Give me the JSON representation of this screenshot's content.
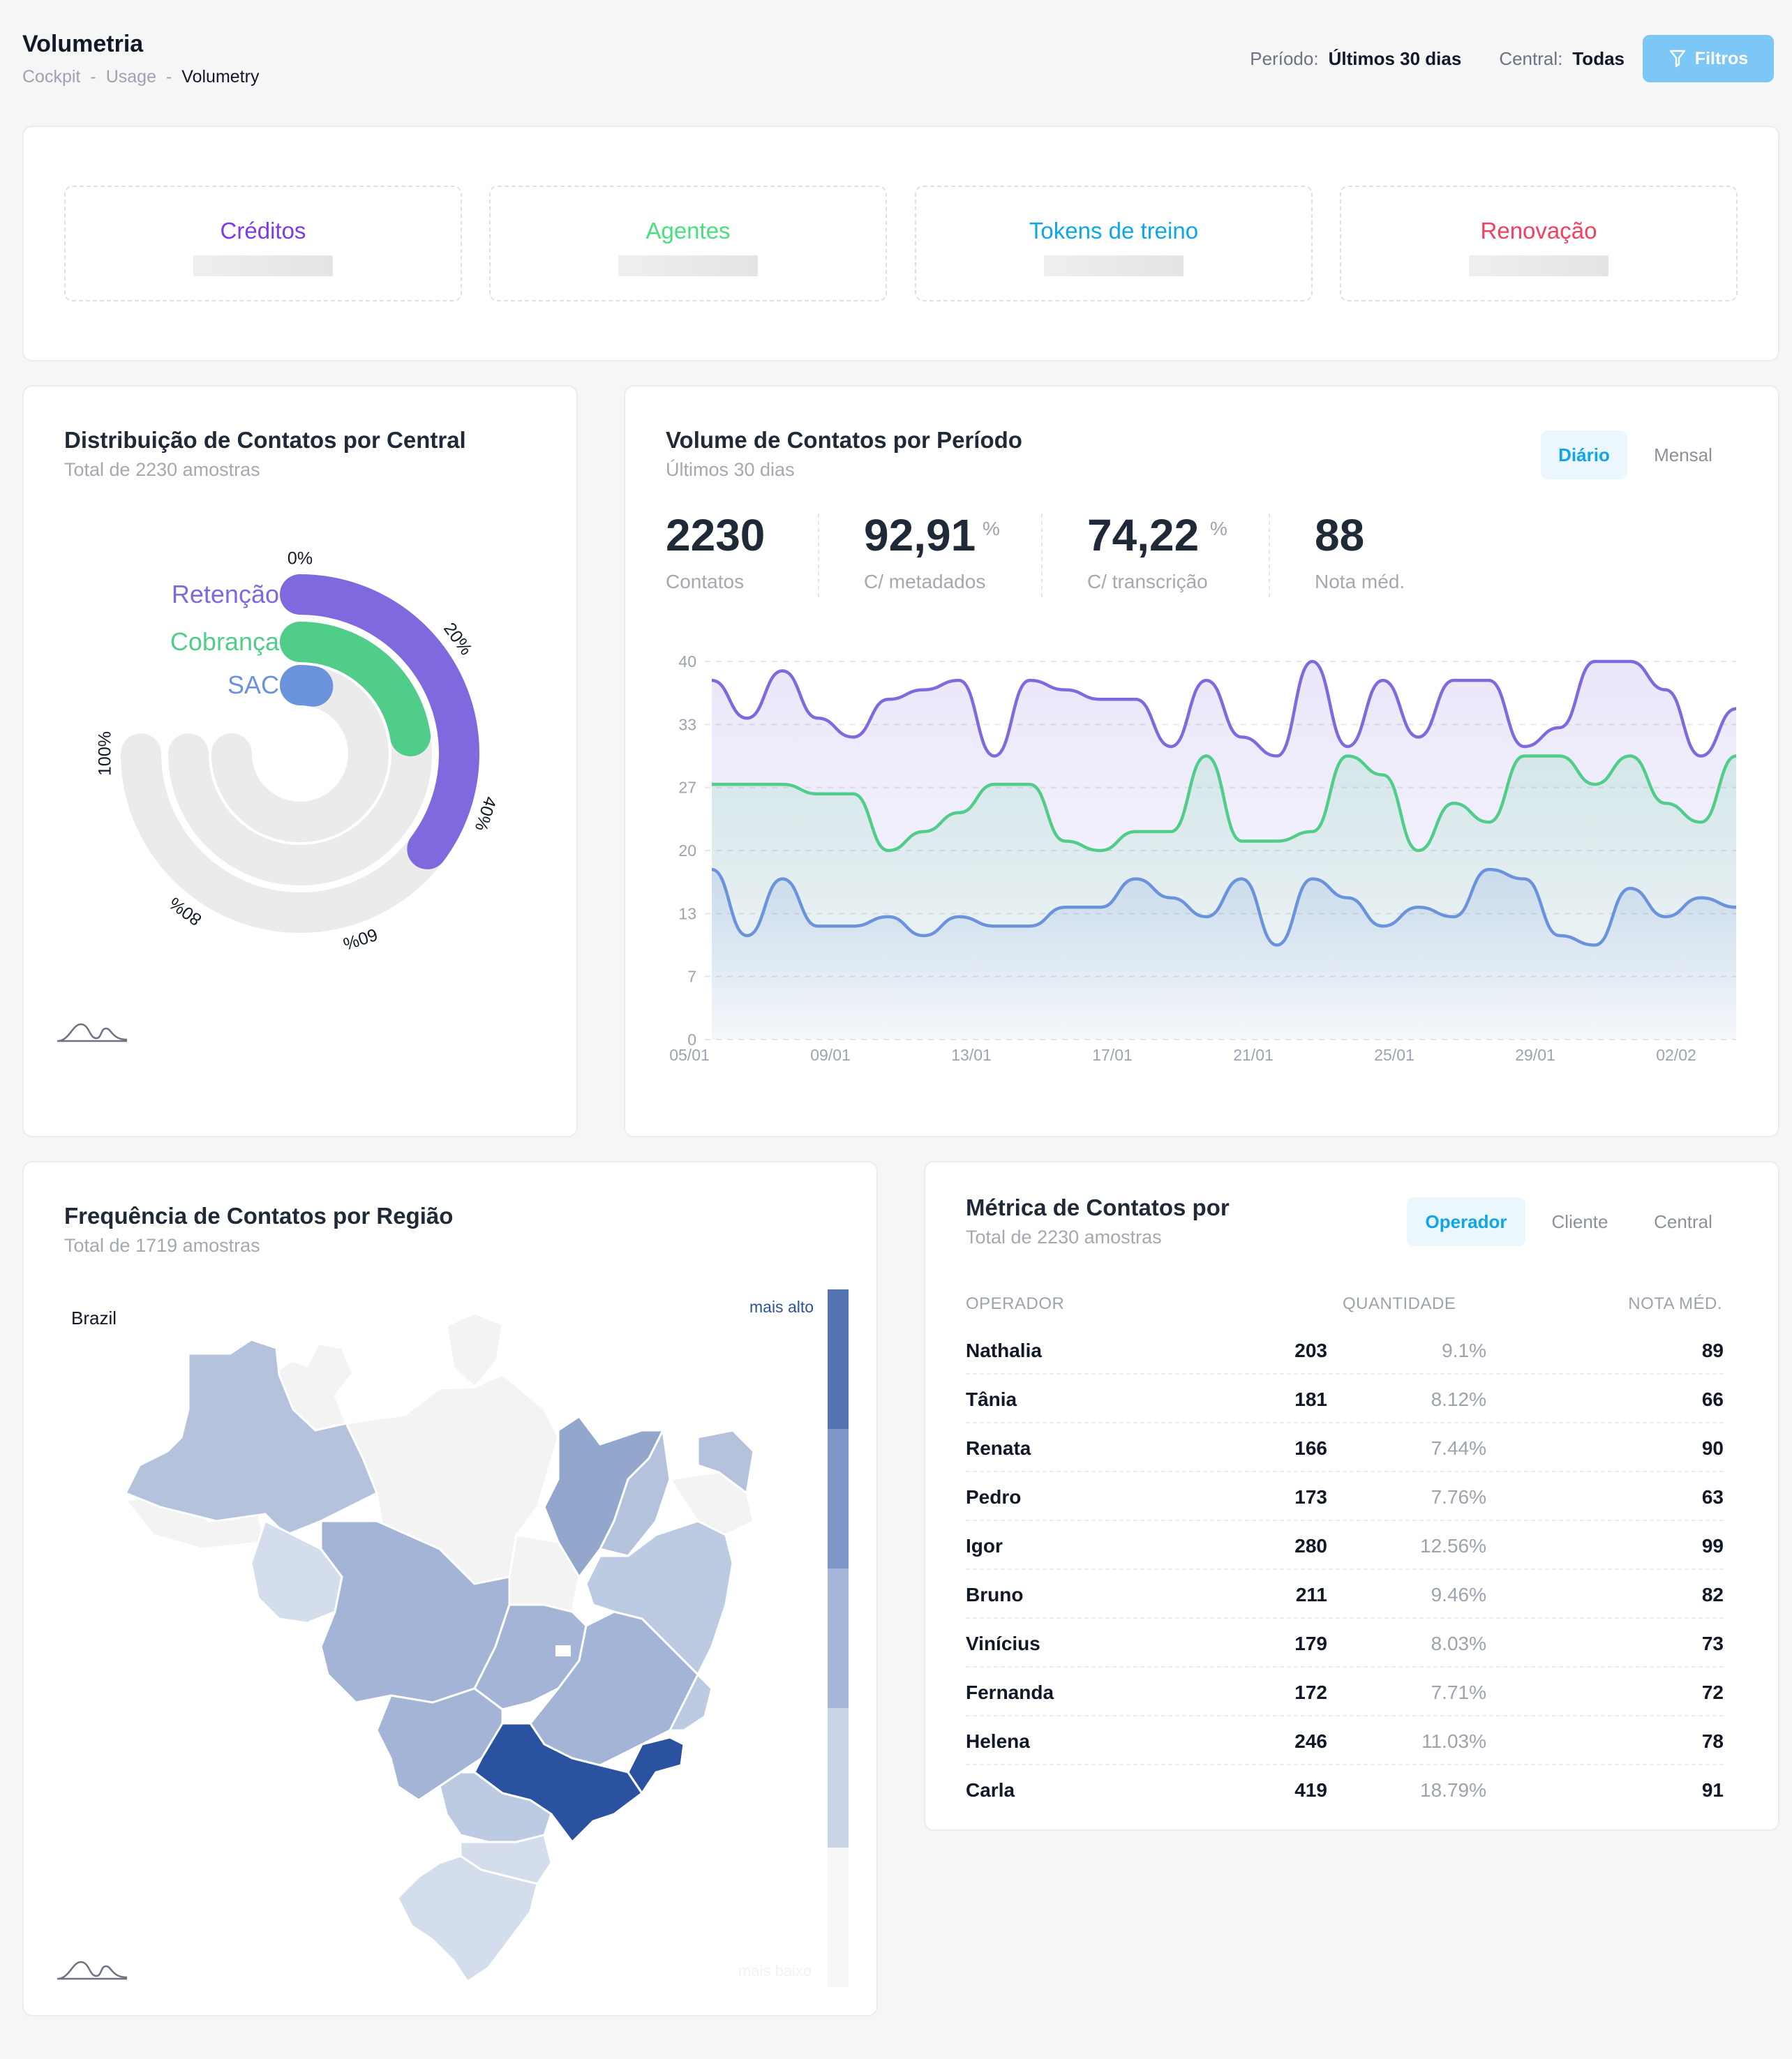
{
  "header": {
    "title": "Volumetria",
    "breadcrumb": [
      "Cockpit",
      "Usage",
      "Volumetry"
    ],
    "breadcrumb_separator": "-",
    "periodo_label": "Período:",
    "periodo_value": "Últimos 30 dias",
    "central_label": "Central:",
    "central_value": "Todas",
    "filter_button": "Filtros"
  },
  "kpis": [
    {
      "label": "Créditos",
      "color": "#7c3aed"
    },
    {
      "label": "Agentes",
      "color": "#4ade80"
    },
    {
      "label": "Tokens de treino",
      "color": "#0ea5e9"
    },
    {
      "label": "Renovação",
      "color": "#f43f5e"
    }
  ],
  "distribution": {
    "title": "Distribuição de Contatos por Central",
    "subtitle": "Total de 2230 amostras",
    "tick_labels": [
      "0%",
      "20%",
      "40%",
      "60%",
      "80%",
      "100%"
    ],
    "chart_data": {
      "type": "radial-bar",
      "categories": [
        "Retenção",
        "Cobrança",
        "SAC"
      ],
      "values_percent": [
        47,
        30,
        4
      ],
      "colors": [
        "#8068de",
        "#50cd89",
        "#6b93dc"
      ],
      "range": [
        0,
        100
      ]
    }
  },
  "volume": {
    "title": "Volume de Contatos por Período",
    "subtitle": "Últimos 30 dias",
    "tabs": [
      "Diário",
      "Mensal"
    ],
    "active_tab": "Diário",
    "stats": [
      {
        "value": "2230",
        "suffix": "",
        "label": "Contatos"
      },
      {
        "value": "92,91",
        "suffix": "%",
        "label": "C/ metadados"
      },
      {
        "value": "74,22",
        "suffix": "%",
        "label": "C/ transcrição"
      },
      {
        "value": "88",
        "suffix": "",
        "label": "Nota méd."
      }
    ],
    "chart_data": {
      "type": "area",
      "y_ticks": [
        "40",
        "33",
        "27",
        "20",
        "13",
        "7",
        "0"
      ],
      "ylim": [
        0,
        40
      ],
      "x_ticks": [
        "05/01",
        "09/01",
        "13/01",
        "17/01",
        "21/01",
        "25/01",
        "29/01",
        "02/02"
      ],
      "series": [
        {
          "color": "#8068de",
          "values": [
            38,
            34,
            39,
            34,
            32,
            36,
            37,
            38,
            30,
            38,
            37,
            36,
            36,
            31,
            38,
            32,
            30,
            40,
            31,
            38,
            32,
            38,
            38,
            31,
            33,
            40,
            40,
            37,
            30,
            35
          ]
        },
        {
          "color": "#50cd89",
          "values": [
            27,
            27,
            27,
            26,
            26,
            20,
            22,
            24,
            27,
            27,
            21,
            20,
            22,
            22,
            30,
            21,
            21,
            22,
            30,
            28,
            20,
            25,
            23,
            30,
            30,
            27,
            30,
            25,
            23,
            30
          ]
        },
        {
          "color": "#6b93dc",
          "values": [
            18,
            11,
            17,
            12,
            12,
            13,
            11,
            13,
            12,
            12,
            14,
            14,
            17,
            15,
            13,
            17,
            10,
            17,
            15,
            12,
            14,
            13,
            18,
            17,
            11,
            10,
            16,
            13,
            15,
            14
          ]
        }
      ]
    }
  },
  "region": {
    "title": "Frequência de Contatos por Região",
    "subtitle": "Total de 1719 amostras",
    "map_label": "Brazil",
    "legend_top": "mais alto",
    "legend_bottom": "mais baixo",
    "legend_colors": [
      "#5474b2",
      "#7f97c8",
      "#a5b6d8",
      "#cad4e7",
      "#f7f7f8"
    ],
    "state_colors": {
      "highest": "#2a52a0",
      "high": "#93a7cd",
      "mid": "#a3b4d6",
      "low": "#bccae2",
      "lower": "#d4ddec",
      "none": "#f3f3f4"
    }
  },
  "metrics": {
    "title": "Métrica de Contatos por",
    "subtitle": "Total de 2230 amostras",
    "tabs": [
      "Operador",
      "Cliente",
      "Central"
    ],
    "active_tab": "Operador",
    "columns": [
      "OPERADOR",
      "QUANTIDADE",
      "NOTA MÉD."
    ],
    "rows": [
      {
        "name": "Nathalia",
        "qty": "203",
        "pct": "9.1%",
        "nota": "89"
      },
      {
        "name": "Tânia",
        "qty": "181",
        "pct": "8.12%",
        "nota": "66"
      },
      {
        "name": "Renata",
        "qty": "166",
        "pct": "7.44%",
        "nota": "90"
      },
      {
        "name": "Pedro",
        "qty": "173",
        "pct": "7.76%",
        "nota": "63"
      },
      {
        "name": "Igor",
        "qty": "280",
        "pct": "12.56%",
        "nota": "99"
      },
      {
        "name": "Bruno",
        "qty": "211",
        "pct": "9.46%",
        "nota": "82"
      },
      {
        "name": "Vinícius",
        "qty": "179",
        "pct": "8.03%",
        "nota": "73"
      },
      {
        "name": "Fernanda",
        "qty": "172",
        "pct": "7.71%",
        "nota": "72"
      },
      {
        "name": "Helena",
        "qty": "246",
        "pct": "11.03%",
        "nota": "78"
      },
      {
        "name": "Carla",
        "qty": "419",
        "pct": "18.79%",
        "nota": "91"
      }
    ]
  }
}
